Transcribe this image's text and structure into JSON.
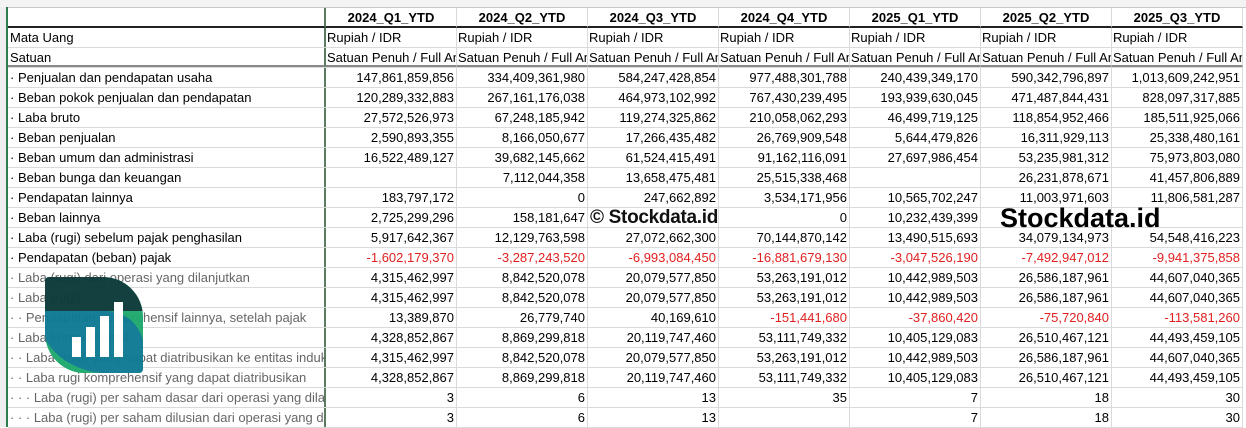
{
  "columns": [
    "2024_Q1_YTD",
    "2024_Q2_YTD",
    "2024_Q3_YTD",
    "2024_Q4_YTD",
    "2025_Q1_YTD",
    "2025_Q2_YTD",
    "2025_Q3_YTD"
  ],
  "meta_rows": [
    {
      "label": "Mata Uang",
      "values": [
        "Rupiah / IDR",
        "Rupiah / IDR",
        "Rupiah / IDR",
        "Rupiah / IDR",
        "Rupiah / IDR",
        "Rupiah / IDR",
        "Rupiah / IDR"
      ]
    },
    {
      "label": "Satuan",
      "values": [
        "Satuan Penuh / Full Amount",
        "Satuan Penuh / Full Amount",
        "Satuan Penuh / Full Amount",
        "Satuan Penuh / Full Amount",
        "Satuan Penuh / Full Amount",
        "Satuan Penuh / Full Amount",
        "Satuan Penuh / Full Amount"
      ]
    }
  ],
  "rows": [
    {
      "label": "· Penjualan dan pendapatan usaha",
      "values": [
        "147,861,859,856",
        "334,409,361,980",
        "584,247,428,854",
        "977,488,301,788",
        "240,439,349,170",
        "590,342,796,897",
        "1,013,609,242,951"
      ]
    },
    {
      "label": "· Beban pokok penjualan dan pendapatan",
      "values": [
        "120,289,332,883",
        "267,161,176,038",
        "464,973,102,992",
        "767,430,239,495",
        "193,939,630,045",
        "471,487,844,431",
        "828,097,317,885"
      ]
    },
    {
      "label": "· Laba bruto",
      "values": [
        "27,572,526,973",
        "67,248,185,942",
        "119,274,325,862",
        "210,058,062,293",
        "46,499,719,125",
        "118,854,952,466",
        "185,511,925,066"
      ]
    },
    {
      "label": "· Beban penjualan",
      "values": [
        "2,590,893,355",
        "8,166,050,677",
        "17,266,435,482",
        "26,769,909,548",
        "5,644,479,826",
        "16,311,929,113",
        "25,338,480,161"
      ]
    },
    {
      "label": "· Beban umum dan administrasi",
      "values": [
        "16,522,489,127",
        "39,682,145,662",
        "61,524,415,491",
        "91,162,116,091",
        "27,697,986,454",
        "53,235,981,312",
        "75,973,803,080"
      ]
    },
    {
      "label": "· Beban bunga dan keuangan",
      "values": [
        "",
        "7,112,044,358",
        "13,658,475,481",
        "25,515,338,468",
        "",
        "26,231,878,671",
        "41,457,806,889"
      ]
    },
    {
      "label": "· Pendapatan lainnya",
      "values": [
        "183,797,172",
        "0",
        "247,662,892",
        "3,534,171,956",
        "10,565,702,247",
        "11,003,971,603",
        "11,806,581,287"
      ]
    },
    {
      "label": "· Beban lainnya",
      "values": [
        "2,725,299,296",
        "158,181,647",
        "",
        "0",
        "10,232,439,399",
        "",
        ""
      ]
    },
    {
      "label": "· Laba (rugi) sebelum pajak penghasilan",
      "values": [
        "5,917,642,367",
        "12,129,763,598",
        "27,072,662,300",
        "70,144,870,142",
        "13,490,515,693",
        "34,079,134,973",
        "54,548,416,223"
      ]
    },
    {
      "label": "· Pendapatan (beban) pajak",
      "values": [
        "-1,602,179,370",
        "-3,287,243,520",
        "-6,993,084,450",
        "-16,881,679,130",
        "-3,047,526,190",
        "-7,492,947,012",
        "-9,941,375,858"
      ]
    },
    {
      "label": "· Laba (rugi) dari operasi yang dilanjutkan",
      "dim": true,
      "values": [
        "4,315,462,997",
        "8,842,520,078",
        "20,079,577,850",
        "53,263,191,012",
        "10,442,989,503",
        "26,586,187,961",
        "44,607,040,365"
      ]
    },
    {
      "label": "· Laba (rugi)",
      "dim": true,
      "values": [
        "4,315,462,997",
        "8,842,520,078",
        "20,079,577,850",
        "53,263,191,012",
        "10,442,989,503",
        "26,586,187,961",
        "44,607,040,365"
      ]
    },
    {
      "label": "· · Pendapatan komprehensif lainnya, setelah pajak",
      "dim": true,
      "values": [
        "13,389,870",
        "26,779,740",
        "40,169,610",
        "-151,441,680",
        "-37,860,420",
        "-75,720,840",
        "-113,581,260"
      ]
    },
    {
      "label": "· Laba komprehensif",
      "dim": true,
      "values": [
        "4,328,852,867",
        "8,869,299,818",
        "20,119,747,460",
        "53,111,749,332",
        "10,405,129,083",
        "26,510,467,121",
        "44,493,459,105"
      ]
    },
    {
      "label": "· · Laba (rugi) yang dapat diatribusikan ke entitas induk",
      "dim": true,
      "values": [
        "4,315,462,997",
        "8,842,520,078",
        "20,079,577,850",
        "53,263,191,012",
        "10,442,989,503",
        "26,586,187,961",
        "44,607,040,365"
      ]
    },
    {
      "label": "· · Laba rugi komprehensif yang dapat diatribusikan",
      "dim": true,
      "values": [
        "4,328,852,867",
        "8,869,299,818",
        "20,119,747,460",
        "53,111,749,332",
        "10,405,129,083",
        "26,510,467,121",
        "44,493,459,105"
      ]
    },
    {
      "label": "· · · Laba (rugi) per saham dasar dari operasi yang dilanjutkan",
      "dim": true,
      "values": [
        "3",
        "6",
        "13",
        "35",
        "7",
        "18",
        "30"
      ]
    },
    {
      "label": "· · · Laba (rugi) per saham dilusian dari operasi yang dilanjutkan",
      "dim": true,
      "values": [
        "3",
        "6",
        "13",
        "",
        "7",
        "18",
        "30"
      ]
    }
  ],
  "watermark": {
    "copyright": "© Stockdata.id",
    "brand": "Stockdata.id"
  },
  "colors": {
    "negative": "#e02020",
    "logo_dark": "#0d3b3a",
    "logo_teal": "#0f7a93",
    "logo_green": "#1faa6f"
  }
}
